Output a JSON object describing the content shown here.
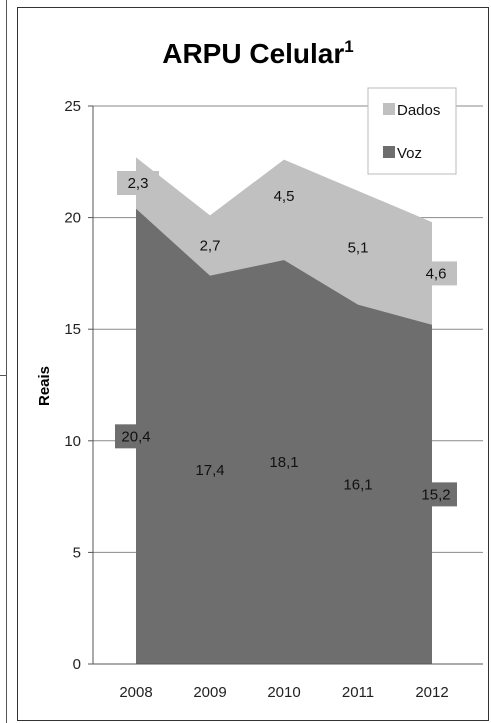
{
  "chart_data": {
    "type": "area",
    "stacked": true,
    "title": "ARPU Celular",
    "title_superscript": "1",
    "ylabel": "Reais",
    "xlabel": "",
    "categories": [
      "2008",
      "2009",
      "2010",
      "2011",
      "2012"
    ],
    "ylim": [
      0,
      25
    ],
    "yticks": [
      "0",
      "5",
      "10",
      "15",
      "20",
      "25"
    ],
    "grid": true,
    "legend_position": "top-right",
    "series": [
      {
        "name": "Voz",
        "values": [
          20.4,
          17.4,
          18.1,
          16.1,
          15.2
        ],
        "labels": [
          "20,4",
          "17,4",
          "18,1",
          "16,1",
          "15,2"
        ],
        "color": "#6e6e6e"
      },
      {
        "name": "Dados",
        "values": [
          2.3,
          2.7,
          4.5,
          5.1,
          4.6
        ],
        "labels": [
          "2,3",
          "2,7",
          "4,5",
          "5,1",
          "4,6"
        ],
        "color": "#c0c0c0"
      }
    ],
    "legend": [
      "Dados",
      "Voz"
    ]
  }
}
